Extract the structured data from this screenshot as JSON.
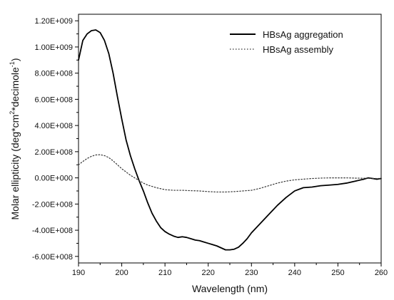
{
  "chart_data": {
    "type": "line",
    "title": "",
    "xlabel": "Wavelength (nm)",
    "ylabel_parts": {
      "main": "Molar ellipticity (deg*cm",
      "sup1": "2",
      "mid": "*decimole",
      "sup2": "-1",
      "end": ")"
    },
    "xlim": [
      190,
      260
    ],
    "ylim": [
      -650000000,
      1250000000
    ],
    "xticks": [
      190,
      200,
      210,
      220,
      230,
      240,
      250,
      260
    ],
    "xtick_labels": [
      "190",
      "200",
      "210",
      "220",
      "230",
      "240",
      "250",
      "260"
    ],
    "yticks": [
      -600000000,
      -400000000,
      -200000000,
      0,
      200000000,
      400000000,
      600000000,
      800000000,
      1000000000,
      1200000000
    ],
    "ytick_labels": [
      "-6.00E+008",
      "-4.00E+008",
      "-2.00E+008",
      "0.00E+000",
      "2.00E+008",
      "4.00E+008",
      "6.00E+008",
      "8.00E+008",
      "1.00E+009",
      "1.20E+009"
    ],
    "grid": false,
    "legend_position": "top-right",
    "series": [
      {
        "name": "HBsAg aggregation",
        "style": "solid",
        "color": "#000000",
        "x": [
          190,
          191,
          192,
          193,
          194,
          195,
          196,
          197,
          198,
          199,
          200,
          201,
          202,
          203,
          204,
          205,
          206,
          207,
          208,
          209,
          210,
          211,
          212,
          213,
          214,
          215,
          216,
          217,
          218,
          219,
          220,
          221,
          222,
          223,
          224,
          225,
          226,
          227,
          228,
          229,
          230,
          232,
          234,
          236,
          238,
          240,
          242,
          244,
          246,
          248,
          250,
          252,
          254,
          256,
          257,
          258,
          259,
          260
        ],
        "y": [
          900000000,
          1050000000,
          1100000000,
          1125000000,
          1130000000,
          1110000000,
          1050000000,
          950000000,
          800000000,
          620000000,
          450000000,
          290000000,
          170000000,
          70000000,
          -20000000,
          -100000000,
          -190000000,
          -270000000,
          -330000000,
          -380000000,
          -410000000,
          -430000000,
          -445000000,
          -455000000,
          -450000000,
          -455000000,
          -465000000,
          -475000000,
          -480000000,
          -490000000,
          -500000000,
          -510000000,
          -520000000,
          -535000000,
          -550000000,
          -550000000,
          -545000000,
          -530000000,
          -500000000,
          -465000000,
          -420000000,
          -350000000,
          -280000000,
          -210000000,
          -150000000,
          -100000000,
          -75000000,
          -70000000,
          -60000000,
          -55000000,
          -50000000,
          -40000000,
          -25000000,
          -10000000,
          0,
          -5000000,
          -10000000,
          -5000000
        ]
      },
      {
        "name": "HBsAg assembly",
        "style": "dotted",
        "color": "#333333",
        "x": [
          190,
          191,
          192,
          193,
          194,
          195,
          196,
          197,
          198,
          199,
          200,
          201,
          202,
          203,
          204,
          205,
          206,
          208,
          210,
          212,
          214,
          216,
          218,
          220,
          222,
          224,
          226,
          228,
          230,
          232,
          234,
          236,
          238,
          240,
          242,
          244,
          246,
          248,
          250,
          252,
          254,
          256,
          258,
          260
        ],
        "y": [
          100000000,
          125000000,
          148000000,
          165000000,
          175000000,
          177000000,
          170000000,
          155000000,
          130000000,
          100000000,
          70000000,
          45000000,
          20000000,
          0,
          -20000000,
          -40000000,
          -55000000,
          -75000000,
          -90000000,
          -95000000,
          -95000000,
          -98000000,
          -100000000,
          -105000000,
          -108000000,
          -108000000,
          -105000000,
          -100000000,
          -95000000,
          -80000000,
          -60000000,
          -40000000,
          -25000000,
          -15000000,
          -10000000,
          -5000000,
          -2000000,
          0,
          0,
          0,
          -2000000,
          -3000000,
          -5000000,
          -5000000
        ]
      }
    ]
  }
}
